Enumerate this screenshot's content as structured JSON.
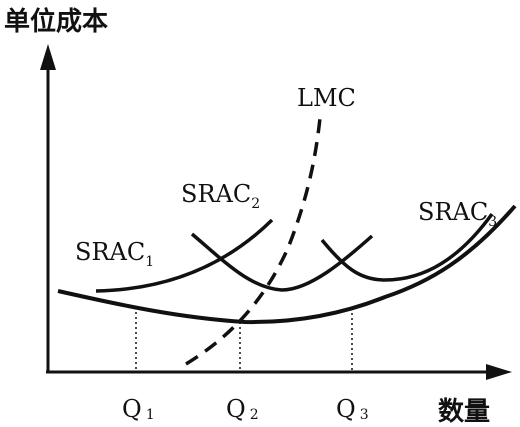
{
  "axes": {
    "y_label": "单位成本",
    "x_label": "数量"
  },
  "curves": {
    "srac1": {
      "name": "SRAC",
      "subscript": "1"
    },
    "srac2": {
      "name": "SRAC",
      "subscript": "2"
    },
    "srac3": {
      "name": "SRAC",
      "subscript": "3"
    },
    "lmc": {
      "name": "LMC"
    }
  },
  "x_ticks": [
    {
      "name": "Q",
      "subscript": "1"
    },
    {
      "name": "Q",
      "subscript": "2"
    },
    {
      "name": "Q",
      "subscript": "3"
    }
  ]
}
